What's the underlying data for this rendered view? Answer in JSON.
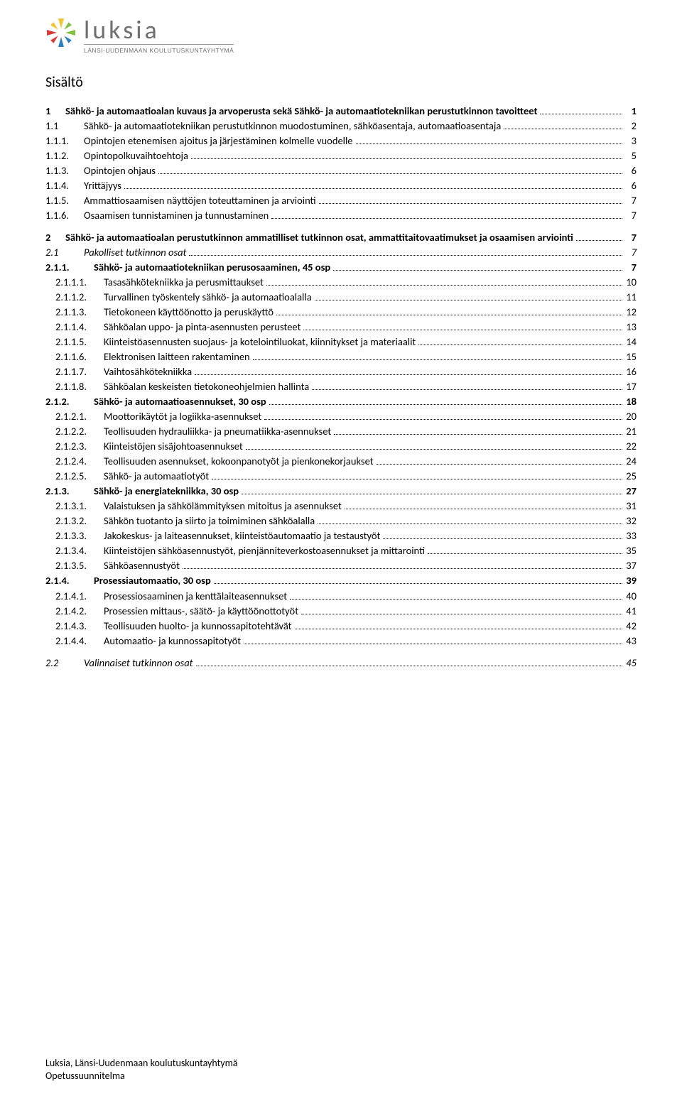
{
  "brand": {
    "word": "luksia",
    "subtitle": "LÄNSI-UUDENMAAN KOULUTUSKUNTAYHTYMÄ",
    "colors": {
      "yellow": "#f4c430",
      "green": "#7fbf3f",
      "blue": "#2f7fbf",
      "red": "#d93a3a",
      "wordColor": "#6f6f6f",
      "ruleColor": "#9a9a9a"
    }
  },
  "tocTitle": "Sisältö",
  "toc": [
    {
      "level": 0,
      "style": "bold",
      "num": "1",
      "label": "Sähkö- ja automaatioalan kuvaus ja arvoperusta sekä Sähkö- ja automaatiotekniikan perustutkinnon tavoitteet",
      "page": "1",
      "spaceBefore": false
    },
    {
      "level": 1,
      "style": "",
      "num": "1.1",
      "label": "Sähkö- ja automaatiotekniikan perustutkinnon muodostuminen, sähköasentaja, automaatioasentaja",
      "page": "2"
    },
    {
      "level": 1,
      "style": "",
      "num": "1.1.1.",
      "label": "Opintojen etenemisen ajoitus ja järjestäminen kolmelle vuodelle",
      "page": "3"
    },
    {
      "level": 1,
      "style": "",
      "num": "1.1.2.",
      "label": "Opintopolkuvaihtoehtoja",
      "page": "5"
    },
    {
      "level": 1,
      "style": "",
      "num": "1.1.3.",
      "label": "Opintojen ohjaus",
      "page": "6"
    },
    {
      "level": 1,
      "style": "",
      "num": "1.1.4.",
      "label": "Yrittäjyys",
      "page": "6"
    },
    {
      "level": 1,
      "style": "",
      "num": "1.1.5.",
      "label": "Ammattiosaamisen näyttöjen toteuttaminen ja arviointi",
      "page": "7"
    },
    {
      "level": 1,
      "style": "",
      "num": "1.1.6.",
      "label": "Osaamisen tunnistaminen ja tunnustaminen",
      "page": "7"
    },
    {
      "level": 0,
      "style": "bold",
      "num": "2",
      "label": "Sähkö- ja automaatioalan perustutkinnon ammatilliset tutkinnon osat, ammattitaitovaatimukset ja osaamisen arviointi",
      "page": "7",
      "spaceBefore": true
    },
    {
      "level": 1,
      "style": "italic",
      "num": "2.1",
      "label": "Pakolliset tutkinnon osat",
      "page": "7"
    },
    {
      "level": 2,
      "style": "bold",
      "num": "2.1.1.",
      "label": "Sähkö- ja automaatiotekniikan perusosaaminen, 45 osp",
      "page": "7"
    },
    {
      "level": 3,
      "style": "",
      "num": "2.1.1.1.",
      "label": "Tasasähkötekniikka ja perusmittaukset",
      "page": "10"
    },
    {
      "level": 3,
      "style": "",
      "num": "2.1.1.2.",
      "label": "Turvallinen työskentely sähkö- ja automaatioalalla",
      "page": "11"
    },
    {
      "level": 3,
      "style": "",
      "num": "2.1.1.3.",
      "label": "Tietokoneen käyttöönotto ja peruskäyttö",
      "page": "12"
    },
    {
      "level": 3,
      "style": "",
      "num": "2.1.1.4.",
      "label": "Sähköalan uppo- ja pinta-asennusten perusteet",
      "page": "13"
    },
    {
      "level": 3,
      "style": "",
      "num": "2.1.1.5.",
      "label": "Kiinteistöasennusten suojaus- ja kotelointiluokat, kiinnitykset ja materiaalit",
      "page": "14"
    },
    {
      "level": 3,
      "style": "",
      "num": "2.1.1.6.",
      "label": "Elektronisen laitteen rakentaminen",
      "page": "15"
    },
    {
      "level": 3,
      "style": "",
      "num": "2.1.1.7.",
      "label": "Vaihtosähkötekniikka",
      "page": "16"
    },
    {
      "level": 3,
      "style": "",
      "num": "2.1.1.8.",
      "label": "Sähköalan keskeisten tietokoneohjelmien hallinta",
      "page": "17"
    },
    {
      "level": 2,
      "style": "bold",
      "num": "2.1.2.",
      "label": "Sähkö- ja automaatioasennukset, 30 osp",
      "page": "18"
    },
    {
      "level": 3,
      "style": "",
      "num": "2.1.2.1.",
      "label": "Moottorikäytöt ja logiikka-asennukset",
      "page": "20"
    },
    {
      "level": 3,
      "style": "",
      "num": "2.1.2.2.",
      "label": "Teollisuuden hydrauliikka- ja pneumatiikka-asennukset",
      "page": "21"
    },
    {
      "level": 3,
      "style": "",
      "num": "2.1.2.3.",
      "label": "Kiinteistöjen sisäjohtoasennukset",
      "page": "22"
    },
    {
      "level": 3,
      "style": "",
      "num": "2.1.2.4.",
      "label": "Teollisuuden asennukset, kokoonpanotyöt ja pienkonekorjaukset",
      "page": "24"
    },
    {
      "level": 3,
      "style": "",
      "num": "2.1.2.5.",
      "label": "Sähkö- ja automaatiotyöt",
      "page": "25"
    },
    {
      "level": 2,
      "style": "bold",
      "num": "2.1.3.",
      "label": "Sähkö- ja energiatekniikka, 30 osp",
      "page": "27"
    },
    {
      "level": 3,
      "style": "",
      "num": "2.1.3.1.",
      "label": "Valaistuksen ja sähkölämmityksen mitoitus ja asennukset",
      "page": "31"
    },
    {
      "level": 3,
      "style": "",
      "num": "2.1.3.2.",
      "label": "Sähkön tuotanto ja siirto ja toimiminen sähköalalla",
      "page": "32"
    },
    {
      "level": 3,
      "style": "",
      "num": "2.1.3.3.",
      "label": "Jakokeskus- ja laiteasennukset, kiinteistöautomaatio ja testaustyöt",
      "page": "33"
    },
    {
      "level": 3,
      "style": "",
      "num": "2.1.3.4.",
      "label": "Kiinteistöjen sähköasennustyöt, pienjänniteverkostoasennukset ja mittarointi",
      "page": "35"
    },
    {
      "level": 3,
      "style": "",
      "num": "2.1.3.5.",
      "label": "Sähköasennustyöt",
      "page": "37"
    },
    {
      "level": 2,
      "style": "bold",
      "num": "2.1.4.",
      "label": "Prosessiautomaatio, 30 osp",
      "page": "39"
    },
    {
      "level": 3,
      "style": "",
      "num": "2.1.4.1.",
      "label": "Prosessiosaaminen ja kenttälaiteasennukset",
      "page": "40"
    },
    {
      "level": 3,
      "style": "",
      "num": "2.1.4.2.",
      "label": "Prosessien mittaus-, säätö- ja käyttöönottotyöt",
      "page": "41"
    },
    {
      "level": 3,
      "style": "",
      "num": "2.1.4.3.",
      "label": "Teollisuuden huolto- ja kunnossapitotehtävät",
      "page": "42"
    },
    {
      "level": 3,
      "style": "",
      "num": "2.1.4.4.",
      "label": "Automaatio- ja kunnossapitotyöt",
      "page": "43"
    },
    {
      "level": 1,
      "style": "italic",
      "num": "2.2",
      "label": "Valinnaiset tutkinnon osat",
      "page": "45",
      "spaceBefore": true
    }
  ],
  "footer": {
    "line1": "Luksia, Länsi-Uudenmaan koulutuskuntayhtymä",
    "line2": "Opetussuunnitelma"
  },
  "layout": {
    "pageWidth": 960,
    "pageHeight": 1550,
    "levelIndents": [
      0,
      1,
      2,
      3
    ],
    "dotLeaderColor": "#000000",
    "background": "#ffffff",
    "tocFontSize": 14.5,
    "titleFontSize": 20
  }
}
